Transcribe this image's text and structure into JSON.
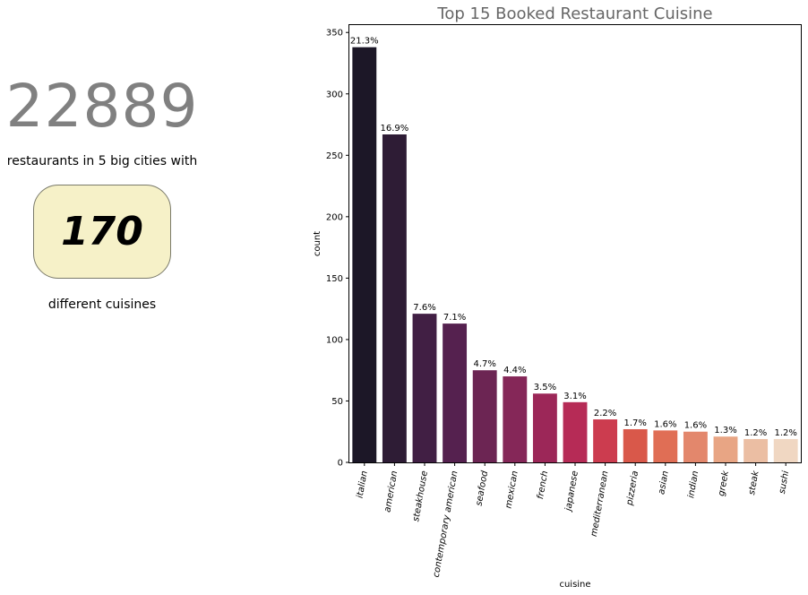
{
  "summary": {
    "restaurant_count": "22889",
    "restaurants_text": "restaurants in 5 big cities with",
    "cuisine_count": "170",
    "cuisines_text": "different cuisines",
    "box_color": "#f6f1c8",
    "number_color": "#808080"
  },
  "chart_data": {
    "type": "bar",
    "title": "Top 15 Booked Restaurant Cuisine",
    "xlabel": "cuisine",
    "ylabel": "count",
    "ylim": [
      0,
      356
    ],
    "yticks": [
      0,
      50,
      100,
      150,
      200,
      250,
      300,
      350
    ],
    "grid": false,
    "categories": [
      "italian",
      "american",
      "steakhouse",
      "contemporary american",
      "seafood",
      "mexican",
      "french",
      "japanese",
      "mediterranean",
      "pizzeria",
      "asian",
      "indian",
      "greek",
      "steak",
      "sushi"
    ],
    "values": [
      338,
      267,
      121,
      113,
      75,
      70,
      56,
      49,
      35,
      27,
      26,
      25,
      21,
      19,
      19
    ],
    "labels": [
      "21.3%",
      "16.9%",
      "7.6%",
      "7.1%",
      "4.7%",
      "4.4%",
      "3.5%",
      "3.1%",
      "2.2%",
      "1.7%",
      "1.6%",
      "1.6%",
      "1.3%",
      "1.2%",
      "1.2%"
    ],
    "colors": [
      "#1c1727",
      "#2e1c35",
      "#411f44",
      "#55214f",
      "#6c2553",
      "#852758",
      "#9c2758",
      "#b62b56",
      "#cc3c4f",
      "#d9584a",
      "#e06e55",
      "#e3876c",
      "#e8a584",
      "#ebbea3",
      "#f0d7c2"
    ]
  }
}
